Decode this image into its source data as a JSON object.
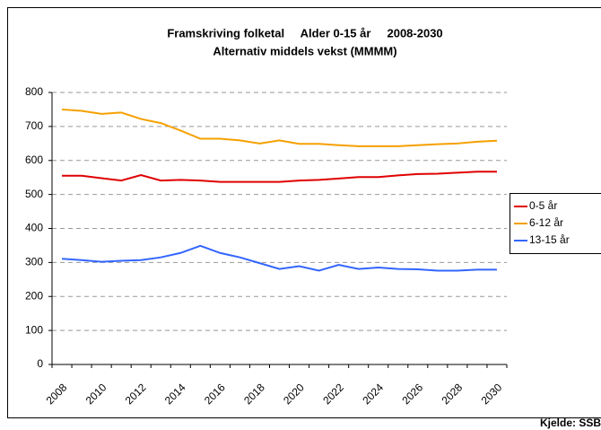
{
  "chart_data": {
    "type": "line",
    "title": "Framskriving folketal     Alder 0-15 år     2008-2030",
    "subtitle": "Alternativ middels vekst (MMMM)",
    "source": "Kjelde: SSB",
    "categories": [
      "2008",
      null,
      "2010",
      null,
      "2012",
      null,
      "2014",
      null,
      "2016",
      null,
      "2018",
      null,
      "2020",
      null,
      "2022",
      null,
      "2024",
      null,
      "2026",
      null,
      "2028",
      null,
      "2030"
    ],
    "series": [
      {
        "name": "0-5 år",
        "color": "#e00000",
        "values": [
          555,
          555,
          548,
          541,
          557,
          541,
          543,
          541,
          537,
          537,
          537,
          537,
          541,
          543,
          547,
          551,
          551,
          556,
          560,
          561,
          564,
          567,
          567
        ]
      },
      {
        "name": "6-12 år",
        "color": "#f5a000",
        "values": [
          750,
          746,
          737,
          741,
          722,
          710,
          688,
          664,
          664,
          659,
          650,
          659,
          649,
          649,
          645,
          642,
          642,
          642,
          645,
          648,
          650,
          655,
          658
        ]
      },
      {
        "name": "13-15 år",
        "color": "#3366ff",
        "values": [
          311,
          307,
          302,
          305,
          307,
          315,
          328,
          349,
          328,
          315,
          298,
          281,
          289,
          276,
          293,
          281,
          285,
          281,
          280,
          276,
          276,
          279,
          279
        ]
      }
    ],
    "ylim": [
      0,
      800
    ],
    "yticks": [
      0,
      100,
      200,
      300,
      400,
      500,
      600,
      700,
      800
    ],
    "grid": true,
    "legend": "right"
  }
}
